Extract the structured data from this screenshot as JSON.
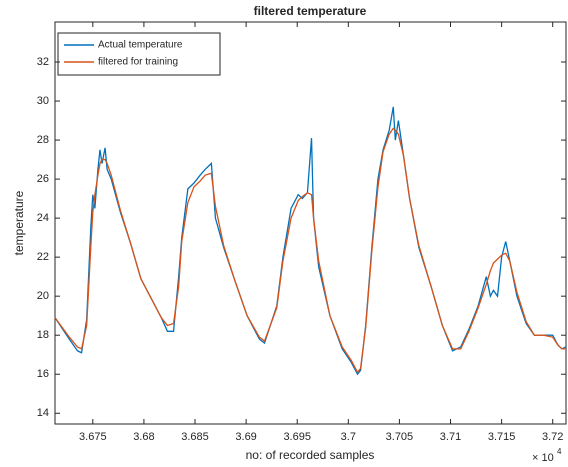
{
  "chart_data": {
    "type": "line",
    "title": "filtered temperature",
    "xlabel": "no: of recorded samples",
    "ylabel": "temperature",
    "x_multiplier": {
      "base": "× 10",
      "exponent": "4"
    },
    "x": [
      3.6713,
      3.6727,
      3.6735,
      3.6739,
      3.6744,
      3.6748,
      3.675,
      3.6752,
      3.6755,
      3.6757,
      3.6759,
      3.6762,
      3.6764,
      3.6768,
      3.6777,
      3.6787,
      3.6797,
      3.6808,
      3.6817,
      3.6823,
      3.6829,
      3.6834,
      3.6837,
      3.6843,
      3.6849,
      3.6855,
      3.686,
      3.6866,
      3.687,
      3.6878,
      3.6889,
      3.6901,
      3.6913,
      3.6918,
      3.693,
      3.6936,
      3.6944,
      3.6951,
      3.6955,
      3.696,
      3.6964,
      3.6966,
      3.6971,
      3.6982,
      3.6994,
      3.7003,
      3.7009,
      3.7012,
      3.7017,
      3.7023,
      3.7029,
      3.7034,
      3.704,
      3.7044,
      3.7046,
      3.7049,
      3.7054,
      3.706,
      3.7069,
      3.7081,
      3.7092,
      3.7102,
      3.711,
      3.7118,
      3.7127,
      3.7135,
      3.7139,
      3.7142,
      3.7146,
      3.715,
      3.7154,
      3.7158,
      3.7165,
      3.7174,
      3.7182,
      3.7191,
      3.72,
      3.7205,
      3.7209,
      3.7213
    ],
    "series": [
      {
        "name": "Actual temperature",
        "color": "#0072bd",
        "values": [
          18.9,
          17.8,
          17.2,
          17.1,
          18.8,
          23.5,
          25.2,
          24.5,
          26.5,
          27.5,
          26.8,
          27.6,
          26.5,
          26.0,
          24.3,
          22.7,
          20.9,
          19.8,
          18.9,
          18.2,
          18.2,
          21.0,
          23.0,
          25.5,
          25.8,
          26.2,
          26.5,
          26.8,
          24.0,
          22.5,
          20.8,
          19.0,
          17.8,
          17.6,
          19.5,
          22.0,
          24.5,
          25.2,
          25.0,
          25.3,
          28.1,
          24.0,
          21.5,
          19.0,
          17.3,
          16.6,
          16.0,
          16.2,
          18.5,
          22.5,
          26.0,
          27.5,
          28.5,
          29.7,
          28.0,
          29.0,
          27.2,
          25.0,
          22.5,
          20.5,
          18.5,
          17.2,
          17.4,
          18.3,
          19.5,
          21.0,
          20.0,
          20.3,
          20.0,
          22.0,
          22.8,
          21.8,
          20.0,
          18.6,
          18.0,
          18.0,
          18.0,
          17.5,
          17.3,
          17.4
        ]
      },
      {
        "name": "filtered for training",
        "color": "#d95319",
        "values": [
          18.9,
          17.9,
          17.4,
          17.3,
          18.5,
          22.5,
          24.3,
          25.2,
          26.2,
          26.8,
          27.0,
          27.0,
          26.8,
          26.2,
          24.4,
          22.7,
          20.9,
          19.8,
          18.9,
          18.5,
          18.6,
          20.5,
          22.8,
          24.8,
          25.6,
          25.9,
          26.2,
          26.3,
          24.6,
          22.6,
          20.8,
          19.0,
          17.9,
          17.7,
          19.4,
          21.8,
          24.0,
          24.9,
          25.1,
          25.3,
          25.2,
          24.0,
          21.8,
          19.0,
          17.4,
          16.7,
          16.1,
          16.3,
          18.4,
          22.3,
          25.6,
          27.4,
          28.3,
          28.6,
          28.5,
          28.3,
          27.2,
          25.0,
          22.6,
          20.5,
          18.5,
          17.3,
          17.3,
          18.2,
          19.4,
          20.6,
          21.3,
          21.7,
          21.9,
          22.1,
          22.2,
          21.8,
          20.2,
          18.7,
          18.0,
          18.0,
          17.9,
          17.5,
          17.3,
          17.3
        ]
      }
    ],
    "xlim": [
      3.6713,
      3.7213
    ],
    "xticks": [
      3.675,
      3.68,
      3.685,
      3.69,
      3.695,
      3.7,
      3.705,
      3.71,
      3.715,
      3.72
    ],
    "ylim": [
      13.45,
      34.05
    ],
    "yticks": [
      14,
      16,
      18,
      20,
      22,
      24,
      26,
      28,
      30,
      32
    ],
    "grid": false,
    "legend": "top-left"
  }
}
